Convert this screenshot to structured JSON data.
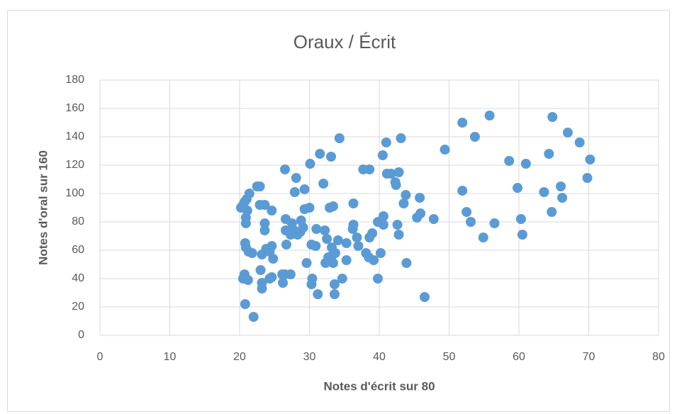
{
  "chart_data": {
    "type": "scatter",
    "title": "Oraux / Écrit",
    "xlabel": "Notes d'écrit sur 80",
    "ylabel": "Notes d'oral sur 160",
    "color": "#5b9bd5",
    "grid": true,
    "xlim": [
      0,
      80
    ],
    "xticks": [
      0,
      10,
      20,
      30,
      40,
      50,
      60,
      70,
      80
    ],
    "ylim": [
      0,
      180
    ],
    "yticks": [
      0,
      20,
      40,
      60,
      80,
      100,
      120,
      140,
      160,
      180
    ],
    "x": [
      20.8,
      22,
      20.2,
      20.5,
      20.7,
      21,
      21.4,
      21.1,
      20.9,
      20.9,
      20.8,
      20.9,
      21.3,
      21.8,
      20.5,
      20.7,
      21.2,
      22.5,
      22.9,
      22.9,
      23.6,
      23.2,
      23,
      23.2,
      23.2,
      23.6,
      23.6,
      23.8,
      24.3,
      24.6,
      24.6,
      24.8,
      24.3,
      24.6,
      26.5,
      26.6,
      26.6,
      26.7,
      26.1,
      26.5,
      26.2,
      27.3,
      27.3,
      27.5,
      27.8,
      28.1,
      27.9,
      28.3,
      28.7,
      29.1,
      28.8,
      29.3,
      29.3,
      30,
      30.1,
      29.6,
      30.3,
      30.9,
      30.4,
      30.3,
      31.2,
      31,
      31.5,
      32,
      32.2,
      32.5,
      32.3,
      32.7,
      33.1,
      32.9,
      33.4,
      33.2,
      33.2,
      33.4,
      33.6,
      33.6,
      33.7,
      34.3,
      34.1,
      34.7,
      35.3,
      35.3,
      36.3,
      36.3,
      36.2,
      36.8,
      37,
      37.7,
      38.6,
      38.1,
      38.5,
      38.6,
      39,
      39.2,
      39.8,
      39.8,
      40.2,
      40.5,
      40.6,
      40.6,
      41,
      41.1,
      41.7,
      42.3,
      42.4,
      42.8,
      43.1,
      42.6,
      42.8,
      43.5,
      43.8,
      43.9,
      45.4,
      45.8,
      45.9,
      46.5,
      47.8,
      49.4,
      51.9,
      51.9,
      52.5,
      53.1,
      53.7,
      54.9,
      55.8,
      56.5,
      58.6,
      59.8,
      60.3,
      60.5,
      61,
      63.6,
      64.3,
      64.8,
      64.7,
      66,
      66.2,
      67,
      68.7,
      69.8,
      70.2
    ],
    "y": [
      22,
      13,
      90,
      92,
      94,
      96,
      100,
      88,
      83,
      79,
      65,
      62,
      59,
      58,
      40,
      43,
      39,
      105,
      105,
      92,
      92,
      57,
      46,
      37,
      33,
      79,
      74,
      61,
      59,
      88,
      63,
      54,
      40,
      41,
      117,
      82,
      74,
      64,
      43,
      43,
      37,
      43,
      71,
      79,
      74,
      111,
      101,
      71,
      73,
      76,
      81,
      103,
      89,
      90,
      121,
      51,
      64,
      63,
      40,
      36,
      29,
      75,
      128,
      107,
      74,
      68,
      51,
      55,
      126,
      90,
      91,
      62,
      56,
      51,
      29,
      36,
      58,
      139,
      67,
      40,
      65,
      53,
      93,
      78,
      75,
      69,
      63,
      117,
      117,
      58,
      55,
      69,
      72,
      53,
      80,
      40,
      58,
      127,
      84,
      78,
      136,
      114,
      114,
      108,
      106,
      115,
      139,
      78,
      71,
      93,
      99,
      51,
      83,
      97,
      86,
      27,
      82,
      131,
      150,
      102,
      87,
      80,
      140,
      69,
      155,
      79,
      123,
      104,
      82,
      71,
      121,
      101,
      128,
      154,
      87,
      105,
      97,
      143,
      136,
      111,
      124
    ]
  }
}
